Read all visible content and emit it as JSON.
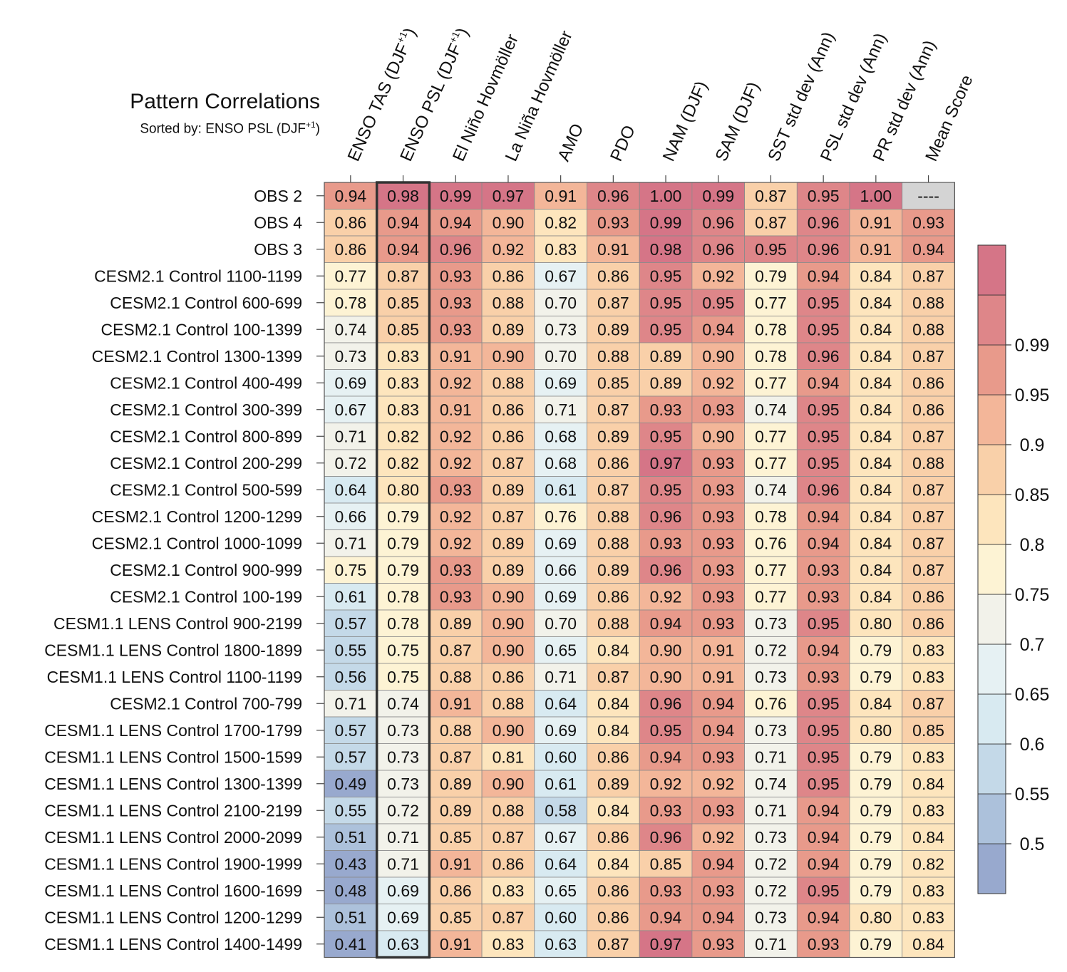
{
  "title": "Pattern Correlations",
  "subtitle_prefix": "Sorted by: ENSO PSL (DJF",
  "subtitle_sup": "+1",
  "subtitle_suffix": ")",
  "colors": {
    "bins": [
      "#98a9ce",
      "#acc1db",
      "#c4d9e8",
      "#d8eaf1",
      "#e6f1f3",
      "#f2f2ea",
      "#fdf3d4",
      "#fde5bd",
      "#f9d0a9",
      "#f3b699",
      "#e89a8b",
      "#de8689",
      "#d57587"
    ],
    "missing": "#d4d4d4",
    "border": "#333333"
  },
  "chart_data": {
    "type": "heatmap",
    "title": "Pattern Correlations",
    "sorted_by": "ENSO PSL (DJF+1)",
    "highlight_column": 1,
    "columns": [
      {
        "label": "ENSO TAS (DJF",
        "sup": "+1",
        "suffix": ")"
      },
      {
        "label": "ENSO PSL (DJF",
        "sup": "+1",
        "suffix": ")"
      },
      {
        "label": "El Niño Hovmöller",
        "sup": "",
        "suffix": ""
      },
      {
        "label": "La Niña Hovmöller",
        "sup": "",
        "suffix": ""
      },
      {
        "label": "AMO",
        "sup": "",
        "suffix": ""
      },
      {
        "label": "PDO",
        "sup": "",
        "suffix": ""
      },
      {
        "label": "NAM (DJF)",
        "sup": "",
        "suffix": ""
      },
      {
        "label": "SAM (DJF)",
        "sup": "",
        "suffix": ""
      },
      {
        "label": "SST std dev (Ann)",
        "sup": "",
        "suffix": ""
      },
      {
        "label": "PSL std dev (Ann)",
        "sup": "",
        "suffix": ""
      },
      {
        "label": "PR std dev (Ann)",
        "sup": "",
        "suffix": ""
      },
      {
        "label": "Mean Score",
        "sup": "",
        "suffix": ""
      }
    ],
    "rows": [
      {
        "label": "OBS 2",
        "values": [
          0.94,
          0.98,
          0.99,
          0.97,
          0.91,
          0.96,
          1.0,
          0.99,
          0.87,
          0.95,
          1.0,
          null
        ]
      },
      {
        "label": "OBS 4",
        "values": [
          0.86,
          0.94,
          0.94,
          0.9,
          0.82,
          0.93,
          0.99,
          0.96,
          0.87,
          0.96,
          0.91,
          0.93
        ]
      },
      {
        "label": "OBS 3",
        "values": [
          0.86,
          0.94,
          0.96,
          0.92,
          0.83,
          0.91,
          0.98,
          0.96,
          0.95,
          0.96,
          0.91,
          0.94
        ]
      },
      {
        "label": "CESM2.1 Control 1100-1199",
        "values": [
          0.77,
          0.87,
          0.93,
          0.86,
          0.67,
          0.86,
          0.95,
          0.92,
          0.79,
          0.94,
          0.84,
          0.87
        ]
      },
      {
        "label": "CESM2.1 Control 600-699",
        "values": [
          0.78,
          0.85,
          0.93,
          0.88,
          0.7,
          0.87,
          0.95,
          0.95,
          0.77,
          0.95,
          0.84,
          0.88
        ]
      },
      {
        "label": "CESM2.1 Control 100-1399",
        "values": [
          0.74,
          0.85,
          0.93,
          0.89,
          0.73,
          0.89,
          0.95,
          0.94,
          0.78,
          0.95,
          0.84,
          0.88
        ]
      },
      {
        "label": "CESM2.1 Control 1300-1399",
        "values": [
          0.73,
          0.83,
          0.91,
          0.9,
          0.7,
          0.88,
          0.89,
          0.9,
          0.78,
          0.96,
          0.84,
          0.87
        ]
      },
      {
        "label": "CESM2.1 Control 400-499",
        "values": [
          0.69,
          0.83,
          0.92,
          0.88,
          0.69,
          0.85,
          0.89,
          0.92,
          0.77,
          0.94,
          0.84,
          0.86
        ]
      },
      {
        "label": "CESM2.1 Control 300-399",
        "values": [
          0.67,
          0.83,
          0.91,
          0.86,
          0.71,
          0.87,
          0.93,
          0.93,
          0.74,
          0.95,
          0.84,
          0.86
        ]
      },
      {
        "label": "CESM2.1 Control 800-899",
        "values": [
          0.71,
          0.82,
          0.92,
          0.86,
          0.68,
          0.89,
          0.95,
          0.9,
          0.77,
          0.95,
          0.84,
          0.87
        ]
      },
      {
        "label": "CESM2.1 Control 200-299",
        "values": [
          0.72,
          0.82,
          0.92,
          0.87,
          0.68,
          0.86,
          0.97,
          0.93,
          0.77,
          0.95,
          0.84,
          0.88
        ]
      },
      {
        "label": "CESM2.1 Control 500-599",
        "values": [
          0.64,
          0.8,
          0.93,
          0.89,
          0.61,
          0.87,
          0.95,
          0.93,
          0.74,
          0.96,
          0.84,
          0.87
        ]
      },
      {
        "label": "CESM2.1 Control 1200-1299",
        "values": [
          0.66,
          0.79,
          0.92,
          0.87,
          0.76,
          0.88,
          0.96,
          0.93,
          0.78,
          0.94,
          0.84,
          0.87
        ]
      },
      {
        "label": "CESM2.1 Control 1000-1099",
        "values": [
          0.71,
          0.79,
          0.92,
          0.89,
          0.69,
          0.88,
          0.93,
          0.93,
          0.76,
          0.94,
          0.84,
          0.87
        ]
      },
      {
        "label": "CESM2.1 Control 900-999",
        "values": [
          0.75,
          0.79,
          0.93,
          0.89,
          0.66,
          0.89,
          0.96,
          0.93,
          0.77,
          0.93,
          0.84,
          0.87
        ]
      },
      {
        "label": "CESM2.1 Control 100-199",
        "values": [
          0.61,
          0.78,
          0.93,
          0.9,
          0.69,
          0.86,
          0.92,
          0.93,
          0.77,
          0.93,
          0.84,
          0.86
        ]
      },
      {
        "label": "CESM1.1 LENS Control 900-2199",
        "values": [
          0.57,
          0.78,
          0.89,
          0.9,
          0.7,
          0.88,
          0.94,
          0.93,
          0.73,
          0.95,
          0.8,
          0.86
        ]
      },
      {
        "label": "CESM1.1 LENS Control 1800-1899",
        "values": [
          0.55,
          0.75,
          0.87,
          0.9,
          0.65,
          0.84,
          0.9,
          0.91,
          0.72,
          0.94,
          0.79,
          0.83
        ]
      },
      {
        "label": "CESM1.1 LENS Control 1100-1199",
        "values": [
          0.56,
          0.75,
          0.88,
          0.86,
          0.71,
          0.87,
          0.9,
          0.91,
          0.73,
          0.93,
          0.79,
          0.83
        ]
      },
      {
        "label": "CESM2.1 Control 700-799",
        "values": [
          0.71,
          0.74,
          0.91,
          0.88,
          0.64,
          0.84,
          0.96,
          0.94,
          0.76,
          0.95,
          0.84,
          0.87
        ]
      },
      {
        "label": "CESM1.1 LENS Control 1700-1799",
        "values": [
          0.57,
          0.73,
          0.88,
          0.9,
          0.69,
          0.84,
          0.95,
          0.94,
          0.73,
          0.95,
          0.8,
          0.85
        ]
      },
      {
        "label": "CESM1.1 LENS Control 1500-1599",
        "values": [
          0.57,
          0.73,
          0.87,
          0.81,
          0.6,
          0.86,
          0.94,
          0.93,
          0.71,
          0.95,
          0.79,
          0.83
        ]
      },
      {
        "label": "CESM1.1 LENS Control 1300-1399",
        "values": [
          0.49,
          0.73,
          0.89,
          0.9,
          0.61,
          0.89,
          0.92,
          0.92,
          0.74,
          0.95,
          0.79,
          0.84
        ]
      },
      {
        "label": "CESM1.1 LENS Control 2100-2199",
        "values": [
          0.55,
          0.72,
          0.89,
          0.88,
          0.58,
          0.84,
          0.93,
          0.93,
          0.71,
          0.94,
          0.79,
          0.83
        ]
      },
      {
        "label": "CESM1.1 LENS Control 2000-2099",
        "values": [
          0.51,
          0.71,
          0.85,
          0.87,
          0.67,
          0.86,
          0.96,
          0.92,
          0.73,
          0.94,
          0.79,
          0.84
        ]
      },
      {
        "label": "CESM1.1 LENS Control 1900-1999",
        "values": [
          0.43,
          0.71,
          0.91,
          0.86,
          0.64,
          0.84,
          0.85,
          0.94,
          0.72,
          0.94,
          0.79,
          0.82
        ]
      },
      {
        "label": "CESM1.1 LENS Control 1600-1699",
        "values": [
          0.48,
          0.69,
          0.86,
          0.83,
          0.65,
          0.86,
          0.93,
          0.93,
          0.72,
          0.95,
          0.79,
          0.83
        ]
      },
      {
        "label": "CESM1.1 LENS Control 1200-1299",
        "values": [
          0.51,
          0.69,
          0.85,
          0.87,
          0.6,
          0.86,
          0.94,
          0.94,
          0.73,
          0.94,
          0.8,
          0.83
        ]
      },
      {
        "label": "CESM1.1 LENS Control 1400-1499",
        "values": [
          0.41,
          0.63,
          0.91,
          0.83,
          0.63,
          0.87,
          0.97,
          0.93,
          0.71,
          0.93,
          0.79,
          0.84
        ]
      }
    ],
    "missing_label": "----",
    "colorbar": {
      "levels": [
        0.5,
        0.55,
        0.6,
        0.65,
        0.7,
        0.75,
        0.8,
        0.85,
        0.9,
        0.95,
        0.99
      ],
      "tick_labels": [
        "0.5",
        "0.55",
        "0.6",
        "0.65",
        "0.7",
        "0.75",
        "0.8",
        "0.85",
        "0.9",
        "0.95",
        "0.99"
      ],
      "bin_edges": [
        0.5,
        0.55,
        0.6,
        0.65,
        0.7,
        0.75,
        0.8,
        0.85,
        0.9,
        0.93,
        0.95,
        0.97,
        0.99
      ]
    }
  }
}
